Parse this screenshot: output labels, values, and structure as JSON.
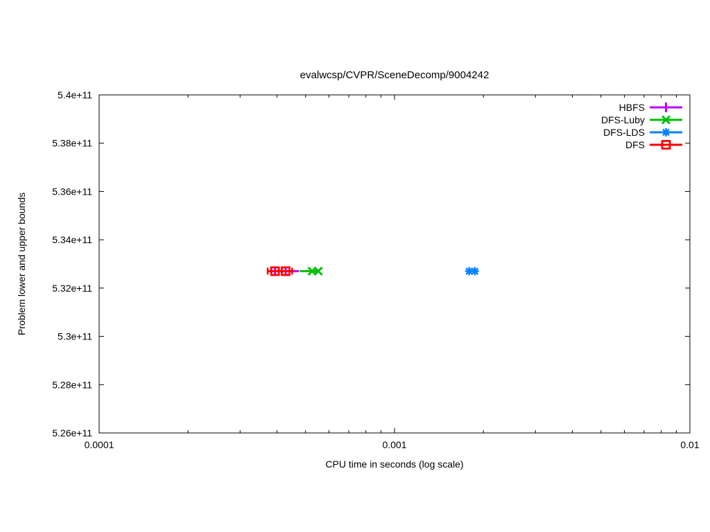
{
  "window": {
    "background": "#ffffff"
  },
  "chart_data": {
    "type": "scatter",
    "title": "evalwcsp/CVPR/SceneDecomp/9004242",
    "xlabel": "CPU time in seconds (log scale)",
    "ylabel": "Problem lower and upper bounds",
    "x_scale": "log",
    "grid": false,
    "legend_position": "inside top-right",
    "xlim": [
      0.0001,
      0.01
    ],
    "ylim": [
      526000000000.0,
      540000000000.0
    ],
    "xticks": [
      {
        "value": 0.0001,
        "label": "0.0001"
      },
      {
        "value": 0.001,
        "label": "0.001"
      },
      {
        "value": 0.01,
        "label": "0.01"
      }
    ],
    "yticks": [
      {
        "value": 526000000000.0,
        "label": "5.26e+11"
      },
      {
        "value": 528000000000.0,
        "label": "5.28e+11"
      },
      {
        "value": 530000000000.0,
        "label": "5.3e+11"
      },
      {
        "value": 532000000000.0,
        "label": "5.32e+11"
      },
      {
        "value": 534000000000.0,
        "label": "5.34e+11"
      },
      {
        "value": 536000000000.0,
        "label": "5.36e+11"
      },
      {
        "value": 538000000000.0,
        "label": "5.38e+11"
      },
      {
        "value": 540000000000.0,
        "label": "5.4e+11"
      }
    ],
    "series": [
      {
        "name": "HBFS",
        "color": "#c000ff",
        "marker": "plus",
        "line_x": [
          0.00038,
          0.000475
        ],
        "error_caps": false,
        "points": [
          {
            "x": 0.000394,
            "y": 532700000000.0
          },
          {
            "x": 0.000428,
            "y": 532700000000.0
          }
        ]
      },
      {
        "name": "DFS-Luby",
        "color": "#00c000",
        "marker": "cross",
        "line_x": [
          0.000478,
          0.000552
        ],
        "error_caps": false,
        "points": [
          {
            "x": 0.000526,
            "y": 532700000000.0
          },
          {
            "x": 0.000552,
            "y": 532700000000.0
          }
        ]
      },
      {
        "name": "DFS-LDS",
        "color": "#0080ff",
        "marker": "star",
        "line_x": null,
        "error_caps": false,
        "points": [
          {
            "x": 0.00179,
            "y": 532700000000.0
          },
          {
            "x": 0.00187,
            "y": 532700000000.0
          }
        ]
      },
      {
        "name": "DFS",
        "color": "#ff0000",
        "marker": "square-open",
        "line_x": [
          0.000372,
          0.00045
        ],
        "error_caps": true,
        "points": [
          {
            "x": 0.000394,
            "y": 532700000000.0
          },
          {
            "x": 0.000428,
            "y": 532700000000.0
          }
        ]
      }
    ]
  }
}
